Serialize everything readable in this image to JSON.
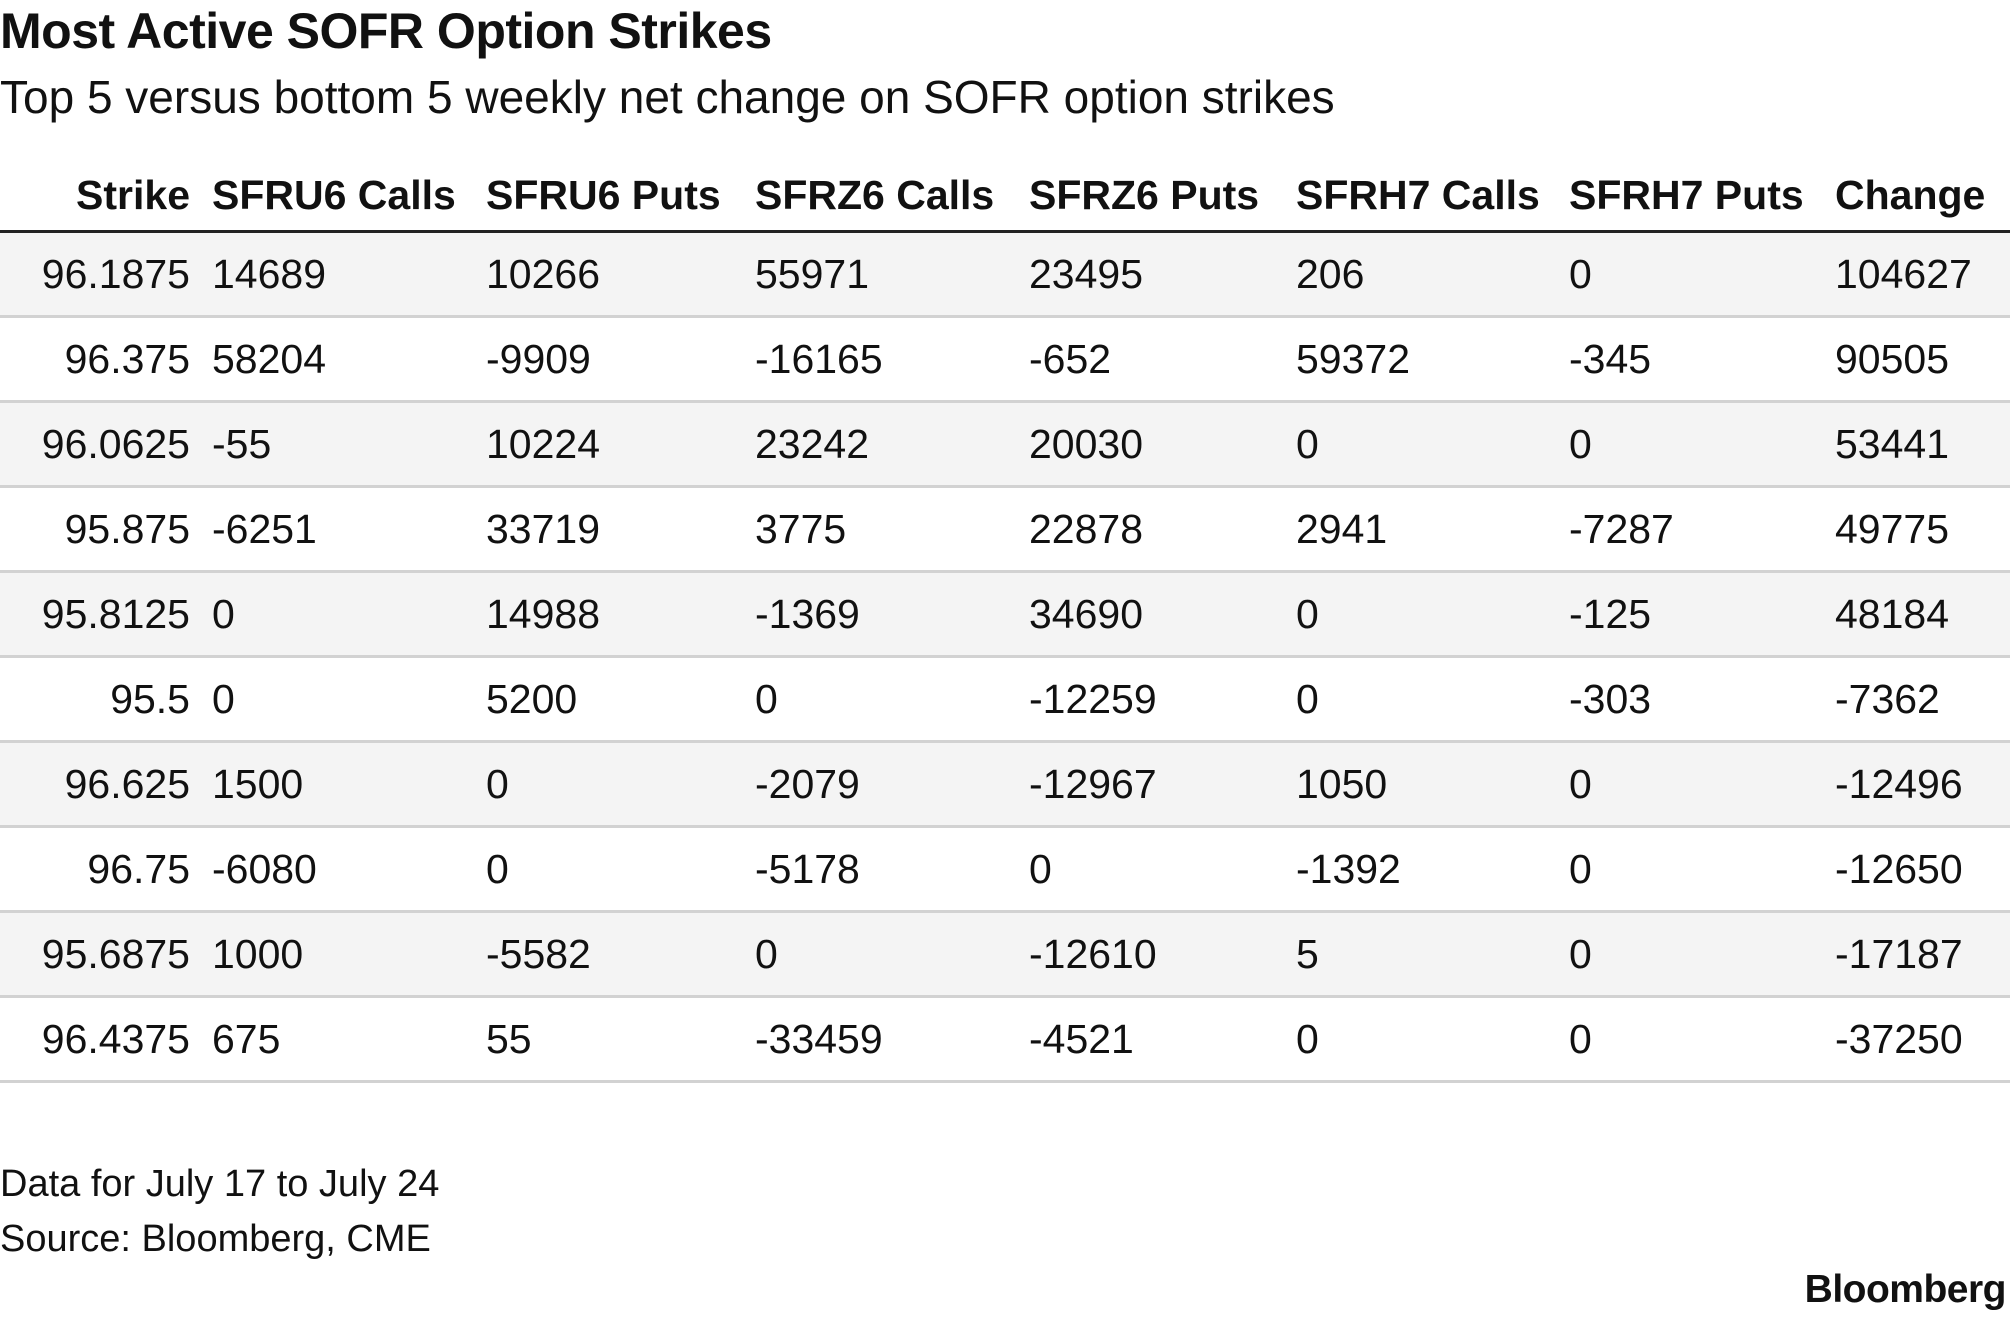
{
  "chart_data": {
    "type": "table",
    "title": "Most Active SOFR Option Strikes",
    "subtitle": "Top 5 versus bottom 5 weekly net change on SOFR option strikes",
    "columns": [
      "Strike",
      "SFRU6 Calls",
      "SFRU6 Puts",
      "SFRZ6 Calls",
      "SFRZ6 Puts",
      "SFRH7 Calls",
      "SFRH7 Puts",
      "Change"
    ],
    "rows": [
      [
        "96.1875",
        "14689",
        "10266",
        "55971",
        "23495",
        "206",
        "0",
        "104627"
      ],
      [
        "96.375",
        "58204",
        "-9909",
        "-16165",
        "-652",
        "59372",
        "-345",
        "90505"
      ],
      [
        "96.0625",
        "-55",
        "10224",
        "23242",
        "20030",
        "0",
        "0",
        "53441"
      ],
      [
        "95.875",
        "-6251",
        "33719",
        "3775",
        "22878",
        "2941",
        "-7287",
        "49775"
      ],
      [
        "95.8125",
        "0",
        "14988",
        "-1369",
        "34690",
        "0",
        "-125",
        "48184"
      ],
      [
        "95.5",
        "0",
        "5200",
        "0",
        "-12259",
        "0",
        "-303",
        "-7362"
      ],
      [
        "96.625",
        "1500",
        "0",
        "-2079",
        "-12967",
        "1050",
        "0",
        "-12496"
      ],
      [
        "96.75",
        "-6080",
        "0",
        "-5178",
        "0",
        "-1392",
        "0",
        "-12650"
      ],
      [
        "95.6875",
        "1000",
        "-5582",
        "0",
        "-12610",
        "5",
        "0",
        "-17187"
      ],
      [
        "96.4375",
        "675",
        "55",
        "-33459",
        "-4521",
        "0",
        "0",
        "-37250"
      ]
    ]
  },
  "notes": [
    "Data for July 17 to July 24",
    "Source: Bloomberg, CME"
  ],
  "brand": "Bloomberg"
}
